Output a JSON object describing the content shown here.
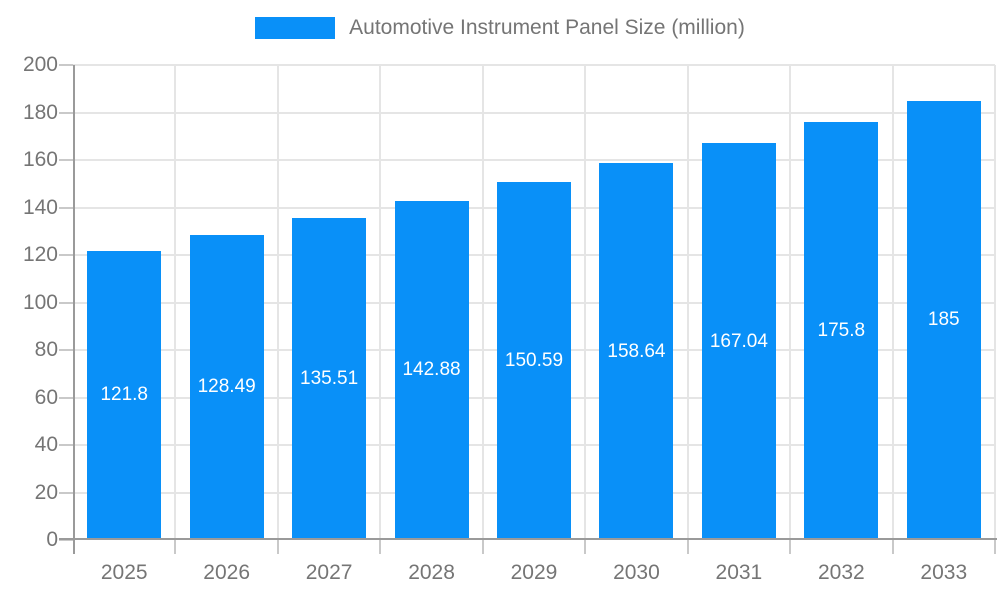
{
  "legend": {
    "swatch_icon": "bar-series-swatch",
    "label": "Automotive Instrument Panel Size (million)"
  },
  "colors": {
    "bar": "#0990f8",
    "bar_label": "#ffffff",
    "grid": "#e5e5e5",
    "tick": "#c9c9c9",
    "axis": "#9a9a9a",
    "axis_text": "#757575"
  },
  "chart_data": {
    "type": "bar",
    "title": "Automotive Instrument Panel Size (million)",
    "categories": [
      "2025",
      "2026",
      "2027",
      "2028",
      "2029",
      "2030",
      "2031",
      "2032",
      "2033"
    ],
    "values": [
      121.8,
      128.49,
      135.51,
      142.88,
      150.59,
      158.64,
      167.04,
      175.8,
      185
    ],
    "value_labels": [
      "121.8",
      "128.49",
      "135.51",
      "142.88",
      "150.59",
      "158.64",
      "167.04",
      "175.8",
      "185"
    ],
    "xlabel": "",
    "ylabel": "",
    "ylim": [
      0,
      200
    ],
    "ytick_step": 20,
    "ytick_labels": [
      "0",
      "20",
      "40",
      "60",
      "80",
      "100",
      "120",
      "140",
      "160",
      "180",
      "200"
    ],
    "grid": true,
    "vertical_gridlines": true,
    "legend_position": "top-center",
    "bar_label_position": "inside-middle"
  }
}
